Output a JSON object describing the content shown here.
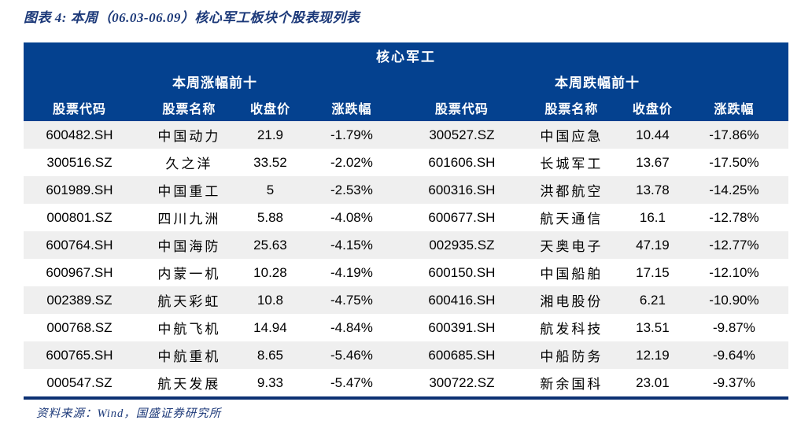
{
  "figure": {
    "title": "图表 4:  本周（06.03-06.09）核心军工板块个股表现列表",
    "source_note": "资料来源：Wind，国盛证券研究所"
  },
  "chart_data": {
    "type": "table",
    "title": "核心军工",
    "sections": [
      {
        "name": "本周涨幅前十",
        "columns": [
          "股票代码",
          "股票名称",
          "收盘价",
          "涨跌幅"
        ],
        "rows": [
          [
            "600482.SH",
            "中国动力",
            "21.9",
            "-1.79%"
          ],
          [
            "300516.SZ",
            "久之洋",
            "33.52",
            "-2.02%"
          ],
          [
            "601989.SH",
            "中国重工",
            "5",
            "-2.53%"
          ],
          [
            "000801.SZ",
            "四川九洲",
            "5.88",
            "-4.08%"
          ],
          [
            "600764.SH",
            "中国海防",
            "25.63",
            "-4.15%"
          ],
          [
            "600967.SH",
            "内蒙一机",
            "10.28",
            "-4.19%"
          ],
          [
            "002389.SZ",
            "航天彩虹",
            "10.8",
            "-4.75%"
          ],
          [
            "000768.SZ",
            "中航飞机",
            "14.94",
            "-4.84%"
          ],
          [
            "600765.SH",
            "中航重机",
            "8.65",
            "-5.46%"
          ],
          [
            "000547.SZ",
            "航天发展",
            "9.33",
            "-5.47%"
          ]
        ]
      },
      {
        "name": "本周跌幅前十",
        "columns": [
          "股票代码",
          "股票名称",
          "收盘价",
          "涨跌幅"
        ],
        "rows": [
          [
            "300527.SZ",
            "中国应急",
            "10.44",
            "-17.86%"
          ],
          [
            "601606.SH",
            "长城军工",
            "13.67",
            "-17.50%"
          ],
          [
            "600316.SH",
            "洪都航空",
            "13.78",
            "-14.25%"
          ],
          [
            "600677.SH",
            "航天通信",
            "16.1",
            "-12.78%"
          ],
          [
            "002935.SZ",
            "天奥电子",
            "47.19",
            "-12.77%"
          ],
          [
            "600150.SH",
            "中国船舶",
            "17.15",
            "-12.10%"
          ],
          [
            "600416.SH",
            "湘电股份",
            "6.21",
            "-10.90%"
          ],
          [
            "600391.SH",
            "航发科技",
            "13.51",
            "-9.87%"
          ],
          [
            "600685.SH",
            "中船防务",
            "12.19",
            "-9.64%"
          ],
          [
            "300722.SZ",
            "新余国科",
            "23.01",
            "-9.37%"
          ]
        ]
      }
    ],
    "layout": {
      "grid": false,
      "row_stripe": true
    }
  },
  "colors": {
    "header_bg": "#04418f",
    "header_text": "#ffffff",
    "title_text": "#1c3979",
    "row_stripe": "#efefef",
    "divider": "#0c3173",
    "body_text": "#000000"
  }
}
